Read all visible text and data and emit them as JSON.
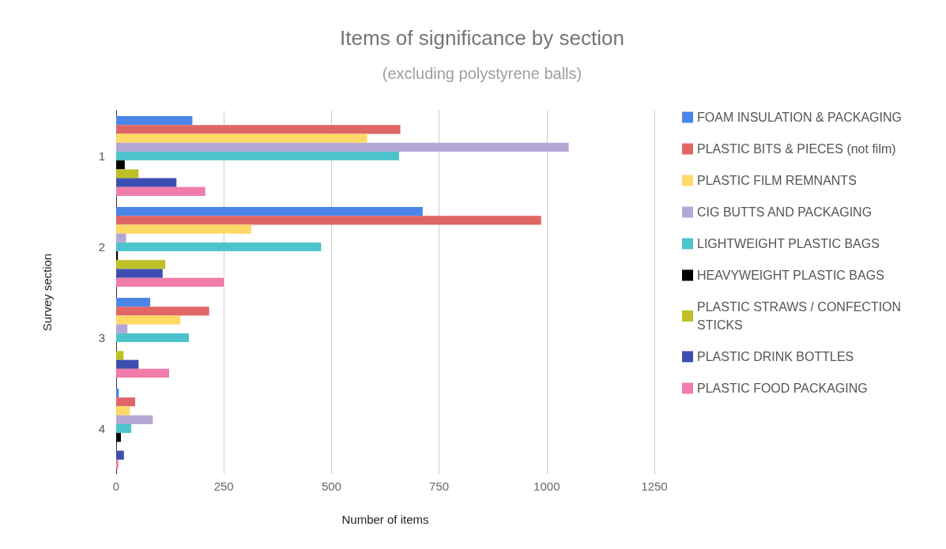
{
  "chart_data": {
    "type": "bar",
    "orientation": "horizontal",
    "title": "Items of significance by section",
    "subtitle": "(excluding polystyrene balls)",
    "xlabel": "Number of items",
    "ylabel": "Survey section",
    "categories": [
      "1",
      "2",
      "3",
      "4"
    ],
    "series": [
      {
        "name": "FOAM INSULATION & PACKAGING",
        "color": "#4a86e8",
        "values": [
          177,
          712,
          79,
          6
        ]
      },
      {
        "name": "PLASTIC BITS & PIECES (not film)",
        "color": "#e06666",
        "values": [
          660,
          987,
          216,
          44
        ]
      },
      {
        "name": "PLASTIC FILM REMNANTS",
        "color": "#ffd966",
        "values": [
          583,
          314,
          149,
          32
        ]
      },
      {
        "name": "CIG BUTTS AND PACKAGING",
        "color": "#b4a7d6",
        "values": [
          1051,
          23,
          26,
          85
        ]
      },
      {
        "name": "LIGHTWEIGHT PLASTIC BAGS",
        "color": "#4dc3cc",
        "values": [
          657,
          476,
          169,
          35
        ]
      },
      {
        "name": "HEAVYWEIGHT PLASTIC BAGS",
        "color": "#000000",
        "values": [
          20,
          4,
          null,
          11
        ]
      },
      {
        "name": "PLASTIC STRAWS / CONFECTION STICKS",
        "color": "#bfbf26",
        "values": [
          52,
          114,
          17,
          0
        ]
      },
      {
        "name": "PLASTIC DRINK BOTTLES",
        "color": "#3c4fb0",
        "values": [
          140,
          108,
          52,
          18
        ]
      },
      {
        "name": "PLASTIC FOOD PACKAGING",
        "color": "#f07cab",
        "values": [
          207,
          250,
          123,
          5
        ]
      }
    ],
    "xlim": [
      0,
      1250
    ],
    "xticks": [
      0,
      250,
      500,
      750,
      1000,
      1250
    ],
    "grid": "x",
    "legend": "right"
  }
}
